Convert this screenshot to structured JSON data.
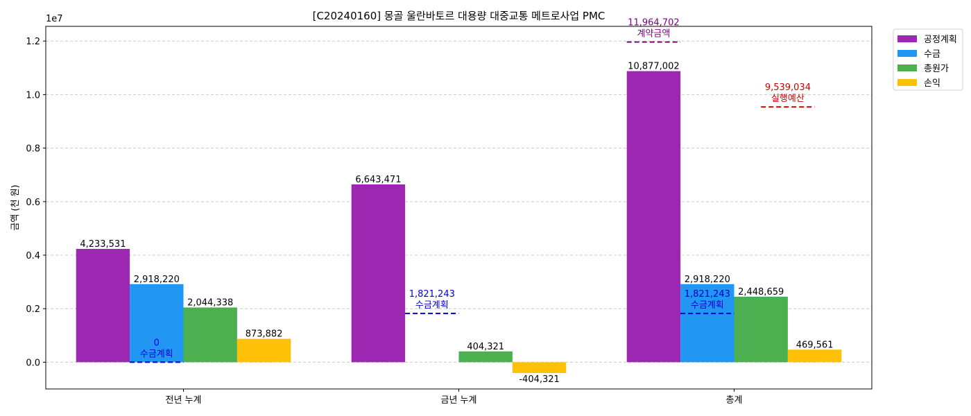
{
  "chart_data": {
    "type": "bar",
    "title": "[C20240160] 몽골 울란바토르 대용량 대중교통 메트로사업 PMC",
    "ylabel": "금액 (천 원)",
    "xlabel": "",
    "offset_label": "1e7",
    "categories": [
      "전년 누계",
      "금년 누계",
      "총계"
    ],
    "ylim": [
      -1000000,
      12550000
    ],
    "yticks": [
      0,
      2000000,
      4000000,
      6000000,
      8000000,
      10000000,
      12000000
    ],
    "ytick_labels": [
      "0.0",
      "0.2",
      "0.4",
      "0.6",
      "0.8",
      "1.0",
      "1.2"
    ],
    "grid": true,
    "legend_position": "outside-top-right",
    "series": [
      {
        "name": "공정계획",
        "color": "#9c27b0",
        "values": [
          4233531,
          6643471,
          10877002
        ],
        "labels": [
          "4,233,531",
          "6,643,471",
          "10,877,002"
        ]
      },
      {
        "name": "수금",
        "color": "#2196f3",
        "values": [
          0,
          0,
          2918220
        ],
        "labels": [
          "2,918,220",
          "",
          "2,918,220"
        ]
      },
      {
        "name": "총원가",
        "color": "#4caf50",
        "values": [
          2044338,
          404321,
          2448659
        ],
        "labels": [
          "2,044,338",
          "404,321",
          "2,448,659"
        ]
      },
      {
        "name": "손익",
        "color": "#ffc107",
        "values": [
          873882,
          -404321,
          469561
        ],
        "labels": [
          "873,882",
          "-404,321",
          "469,561"
        ]
      }
    ],
    "bar_override": [
      {
        "series": 1,
        "category": 0,
        "value": 2918220
      }
    ],
    "reference_lines": [
      {
        "category": 0,
        "series_slot": 1,
        "value": 0,
        "value_label": "0",
        "text": "수금계획",
        "color": "#0000cc"
      },
      {
        "category": 1,
        "series_slot": 1,
        "value": 1821243,
        "value_label": "1,821,243",
        "text": "수금계획",
        "color": "#0000cc"
      },
      {
        "category": 2,
        "series_slot": 1,
        "value": 1821243,
        "value_label": "1,821,243",
        "text": "수금계획",
        "color": "#0000cc"
      },
      {
        "category": 2,
        "series_slot": 0,
        "value": 11964702,
        "value_label": "11,964,702",
        "text": "계약금액",
        "color": "#800080"
      },
      {
        "category": 2,
        "series_slot": 2.5,
        "value": 9539034,
        "value_label": "9,539,034",
        "text": "실행예산",
        "color": "#cc0000"
      }
    ]
  }
}
